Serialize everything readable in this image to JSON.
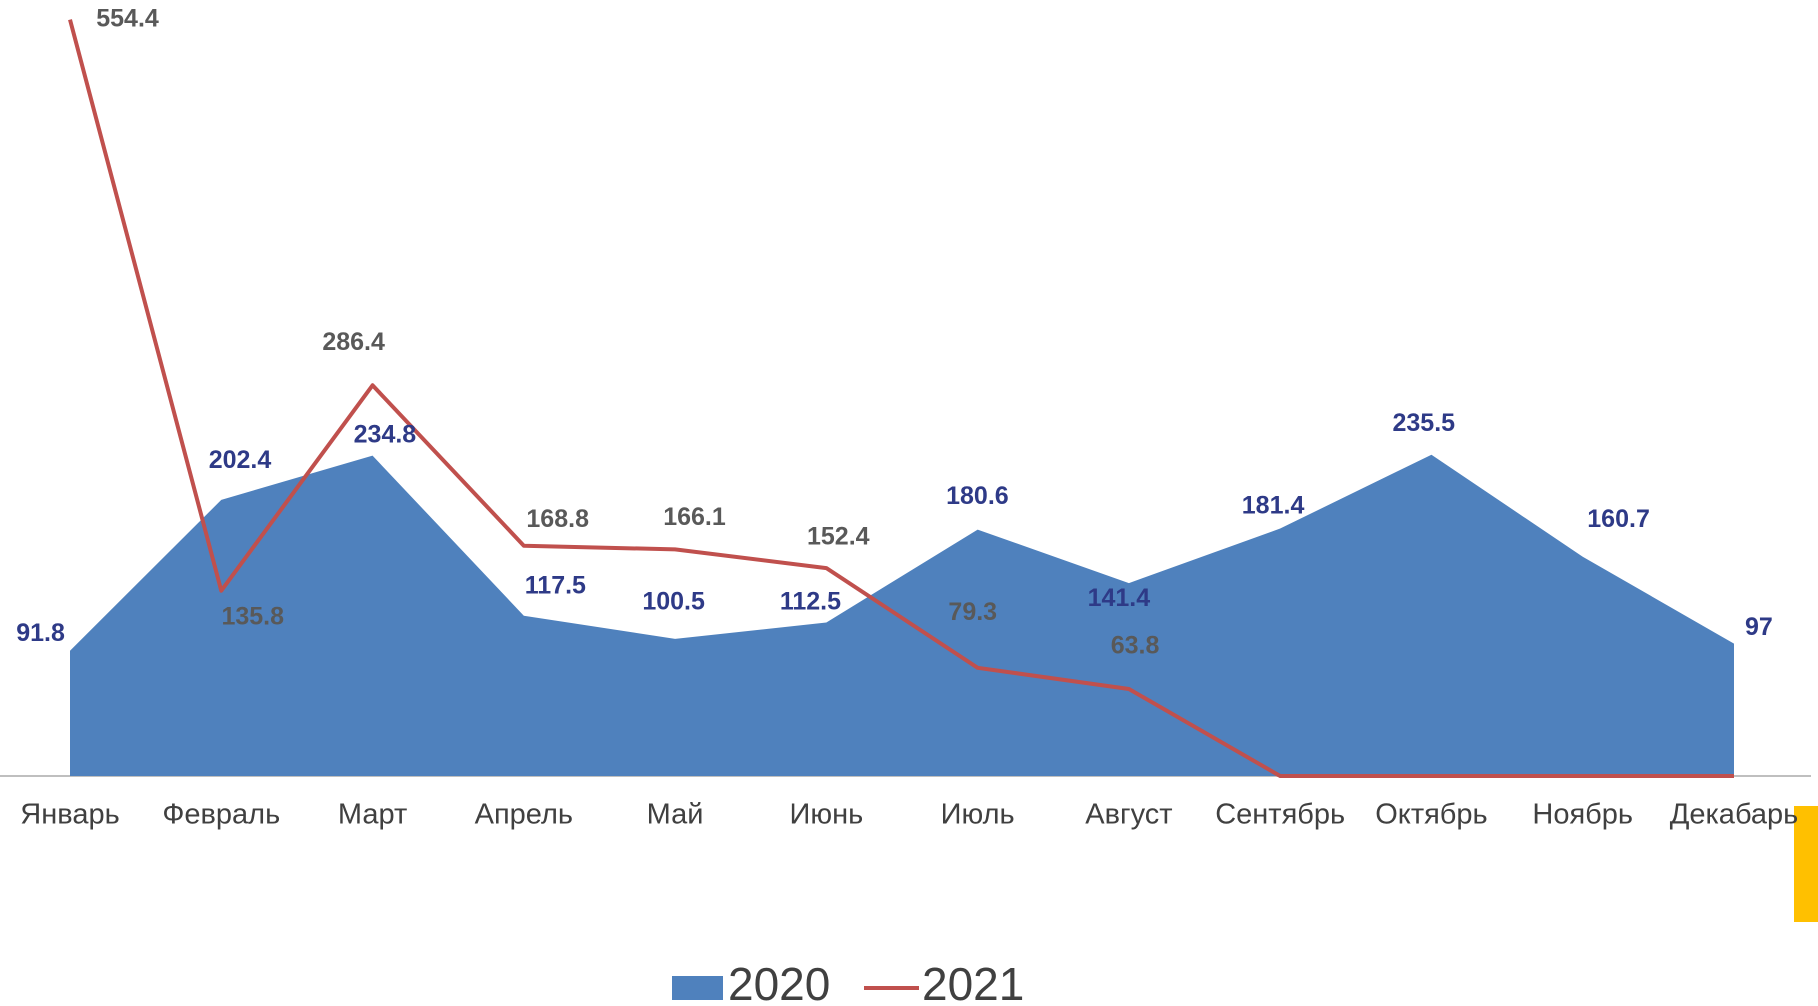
{
  "chart_data": {
    "type": "area_line",
    "categories": [
      "Январь",
      "Февраль",
      "Март",
      "Апрель",
      "Май",
      "Июнь",
      "Июль",
      "Август",
      "Сентябрь",
      "Октябрь",
      "Ноябрь",
      "Декабарь"
    ],
    "series": [
      {
        "name": "2020",
        "color": "#4f81bd",
        "kind": "area",
        "label_color": "#2e3a87",
        "values": [
          91.8,
          202.4,
          234.8,
          117.5,
          100.5,
          112.5,
          180.6,
          141.4,
          181.4,
          235.5,
          160.7,
          97
        ]
      },
      {
        "name": "2021",
        "color": "#c0504d",
        "kind": "line",
        "label_color": "#595959",
        "values": [
          554.4,
          135.8,
          286.4,
          168.8,
          166.1,
          152.4,
          79.3,
          63.8,
          0,
          0,
          0,
          0
        ],
        "value_labels": [
          "554.4",
          "135.8",
          "286.4",
          "168.8",
          "166.1",
          "152.4",
          "79.3",
          "63.8",
          null,
          null,
          null,
          null
        ]
      }
    ],
    "ylim": [
      0,
      560
    ],
    "legend": "bottom"
  }
}
